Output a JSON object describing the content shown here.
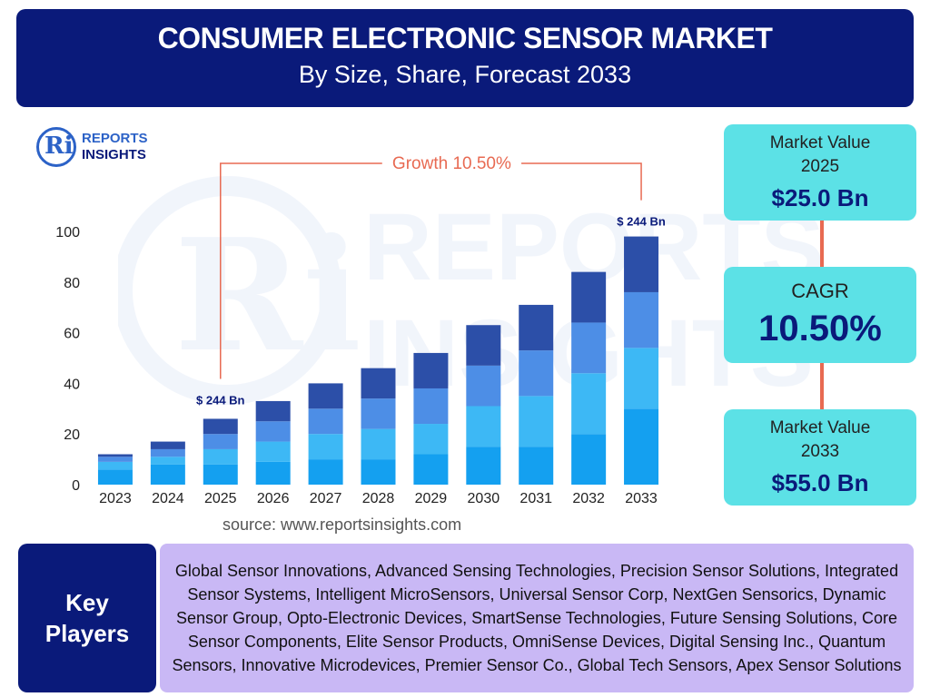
{
  "header": {
    "title": "CONSUMER ELECTRONIC SENSOR MARKET",
    "subtitle": "By Size, Share, Forecast 2033"
  },
  "logo": {
    "line1": "REPORTS",
    "line2": "INSIGHTS",
    "mark": "Ri"
  },
  "chart_data": {
    "type": "bar",
    "stacked": true,
    "categories": [
      "2023",
      "2024",
      "2025",
      "2026",
      "2027",
      "2028",
      "2029",
      "2030",
      "2031",
      "2032",
      "2033"
    ],
    "series": [
      {
        "values": [
          6,
          8,
          8,
          9,
          10,
          10,
          12,
          15,
          15,
          20,
          30
        ]
      },
      {
        "values": [
          3,
          3,
          6,
          8,
          10,
          12,
          12,
          16,
          20,
          24,
          24
        ]
      },
      {
        "values": [
          2,
          3,
          6,
          8,
          10,
          12,
          14,
          16,
          18,
          20,
          22
        ]
      },
      {
        "values": [
          1,
          3,
          6,
          8,
          10,
          12,
          14,
          16,
          18,
          20,
          22
        ]
      }
    ],
    "colors": [
      "#14a0f0",
      "#3db8f5",
      "#4d8ee6",
      "#2c4fa8"
    ],
    "ylim": [
      0,
      100
    ],
    "yticks": [
      0,
      20,
      40,
      60,
      80,
      100
    ],
    "annotations": {
      "growth": "Growth 10.50%",
      "start_label": "$ 244 Bn",
      "end_label": "$ 244 Bn"
    },
    "grid": false
  },
  "source": "source: www.reportsinsights.com",
  "stats": {
    "market_value_2025_label": "Market Value 2025",
    "market_value_2025": "$25.0 Bn",
    "cagr_label": "CAGR",
    "cagr": "10.50%",
    "market_value_2033_label": "Market Value 2033",
    "market_value_2033": "$55.0 Bn"
  },
  "key_players": {
    "label": "Key Players",
    "list": "Global Sensor Innovations, Advanced Sensing Technologies, Precision Sensor Solutions, Integrated Sensor Systems, Intelligent MicroSensors, Universal Sensor Corp, NextGen Sensorics, Dynamic Sensor Group, Opto-Electronic Devices, SmartSense Technologies, Future Sensing Solutions, Core Sensor Components, Elite Sensor Products, OmniSense Devices, Digital Sensing Inc., Quantum Sensors, Innovative Microdevices, Premier Sensor Co., Global Tech Sensors, Apex Sensor Solutions"
  },
  "watermark": {
    "line1": "REPORTS",
    "line2": "INSIGHTS"
  }
}
